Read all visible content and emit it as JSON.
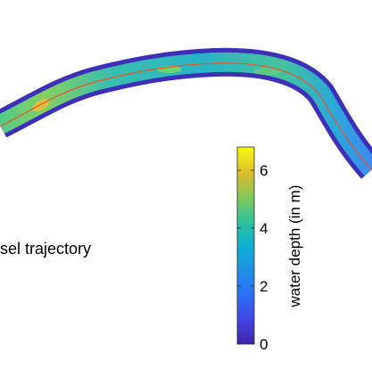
{
  "chart_data": {
    "type": "heatmap",
    "title": "",
    "legend_text": "sel trajectory",
    "colorbar": {
      "label": "water depth (in m)",
      "range": [
        0,
        6.8
      ],
      "ticks": [
        {
          "value": 0,
          "label": "0"
        },
        {
          "value": 2,
          "label": "2"
        },
        {
          "value": 4,
          "label": "4"
        },
        {
          "value": 6,
          "label": "6"
        }
      ],
      "colormap": "parula"
    },
    "trajectory_color": "#e8552b",
    "colors": {
      "shallow": "#3e26a8",
      "mid": "#2eb8b3",
      "deep": "#f9fb0e"
    }
  }
}
